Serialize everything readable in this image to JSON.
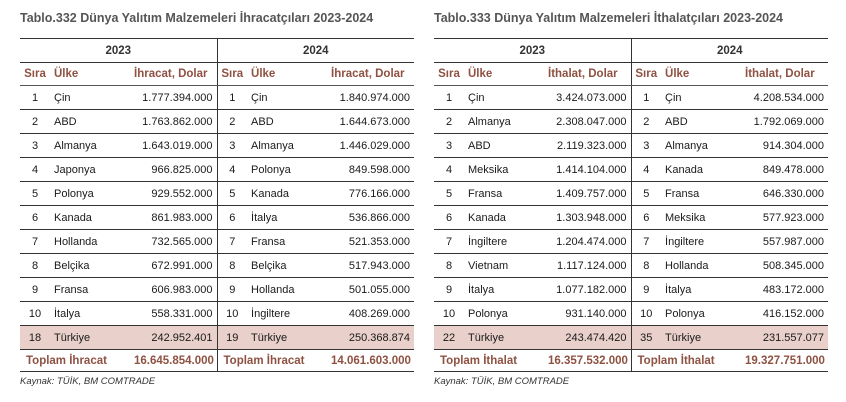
{
  "tables": [
    {
      "title": "Tablo.332 Dünya Yalıtım Malzemeleri İhracatçıları 2023-2024",
      "year_left": "2023",
      "year_right": "2024",
      "col_rank": "Sıra",
      "col_country": "Ülke",
      "col_value": "İhracat, Dolar",
      "rows": [
        {
          "r1": "1",
          "c1": "Çin",
          "v1": "1.777.394.000",
          "r2": "1",
          "c2": "Çin",
          "v2": "1.840.974.000"
        },
        {
          "r1": "2",
          "c1": "ABD",
          "v1": "1.763.862.000",
          "r2": "2",
          "c2": "ABD",
          "v2": "1.644.673.000"
        },
        {
          "r1": "3",
          "c1": "Almanya",
          "v1": "1.643.019.000",
          "r2": "3",
          "c2": "Almanya",
          "v2": "1.446.029.000"
        },
        {
          "r1": "4",
          "c1": "Japonya",
          "v1": "966.825.000",
          "r2": "4",
          "c2": "Polonya",
          "v2": "849.598.000"
        },
        {
          "r1": "5",
          "c1": "Polonya",
          "v1": "929.552.000",
          "r2": "5",
          "c2": "Kanada",
          "v2": "776.166.000"
        },
        {
          "r1": "6",
          "c1": "Kanada",
          "v1": "861.983.000",
          "r2": "6",
          "c2": "İtalya",
          "v2": "536.866.000"
        },
        {
          "r1": "7",
          "c1": "Hollanda",
          "v1": "732.565.000",
          "r2": "7",
          "c2": "Fransa",
          "v2": "521.353.000"
        },
        {
          "r1": "8",
          "c1": "Belçika",
          "v1": "672.991.000",
          "r2": "8",
          "c2": "Belçika",
          "v2": "517.943.000"
        },
        {
          "r1": "9",
          "c1": "Fransa",
          "v1": "606.983.000",
          "r2": "9",
          "c2": "Hollanda",
          "v2": "501.055.000"
        },
        {
          "r1": "10",
          "c1": "İtalya",
          "v1": "558.331.000",
          "r2": "10",
          "c2": "İngiltere",
          "v2": "408.269.000"
        },
        {
          "r1": "18",
          "c1": "Türkiye",
          "v1": "242.952.401",
          "r2": "19",
          "c2": "Türkiye",
          "v2": "250.368.874"
        }
      ],
      "total_label_left": "Toplam İhracat",
      "total_value_left": "16.645.854.000",
      "total_label_right": "Toplam İhracat",
      "total_value_right": "14.061.603.000",
      "source": "Kaynak: TÜİK, BM COMTRADE"
    },
    {
      "title": "Tablo.333 Dünya Yalıtım Malzemeleri İthalatçıları 2023-2024",
      "year_left": "2023",
      "year_right": "2024",
      "col_rank": "Sıra",
      "col_country": "Ülke",
      "col_value": "İthalat, Dolar",
      "rows": [
        {
          "r1": "1",
          "c1": "Çin",
          "v1": "3.424.073.000",
          "r2": "1",
          "c2": "Çin",
          "v2": "4.208.534.000"
        },
        {
          "r1": "2",
          "c1": "Almanya",
          "v1": "2.308.047.000",
          "r2": "2",
          "c2": "ABD",
          "v2": "1.792.069.000"
        },
        {
          "r1": "3",
          "c1": "ABD",
          "v1": "2.119.323.000",
          "r2": "3",
          "c2": "Almanya",
          "v2": "914.304.000"
        },
        {
          "r1": "4",
          "c1": "Meksika",
          "v1": "1.414.104.000",
          "r2": "4",
          "c2": "Kanada",
          "v2": "849.478.000"
        },
        {
          "r1": "5",
          "c1": "Fransa",
          "v1": "1.409.757.000",
          "r2": "5",
          "c2": "Fransa",
          "v2": "646.330.000"
        },
        {
          "r1": "6",
          "c1": "Kanada",
          "v1": "1.303.948.000",
          "r2": "6",
          "c2": "Meksika",
          "v2": "577.923.000"
        },
        {
          "r1": "7",
          "c1": "İngiltere",
          "v1": "1.204.474.000",
          "r2": "7",
          "c2": "İngiltere",
          "v2": "557.987.000"
        },
        {
          "r1": "8",
          "c1": "Vietnam",
          "v1": "1.117.124.000",
          "r2": "8",
          "c2": "Hollanda",
          "v2": "508.345.000"
        },
        {
          "r1": "9",
          "c1": "İtalya",
          "v1": "1.077.182.000",
          "r2": "9",
          "c2": "İtalya",
          "v2": "483.172.000"
        },
        {
          "r1": "10",
          "c1": "Polonya",
          "v1": "931.140.000",
          "r2": "10",
          "c2": "Polonya",
          "v2": "416.152.000"
        },
        {
          "r1": "22",
          "c1": "Türkiye",
          "v1": "243.474.420",
          "r2": "35",
          "c2": "Türkiye",
          "v2": "231.557.077"
        }
      ],
      "total_label_left": "Toplam İthalat",
      "total_value_left": "16.357.532.000",
      "total_label_right": "Toplam İthalat",
      "total_value_right": "19.327.751.000",
      "source": "Kaynak: TÜİK, BM COMTRADE"
    }
  ]
}
